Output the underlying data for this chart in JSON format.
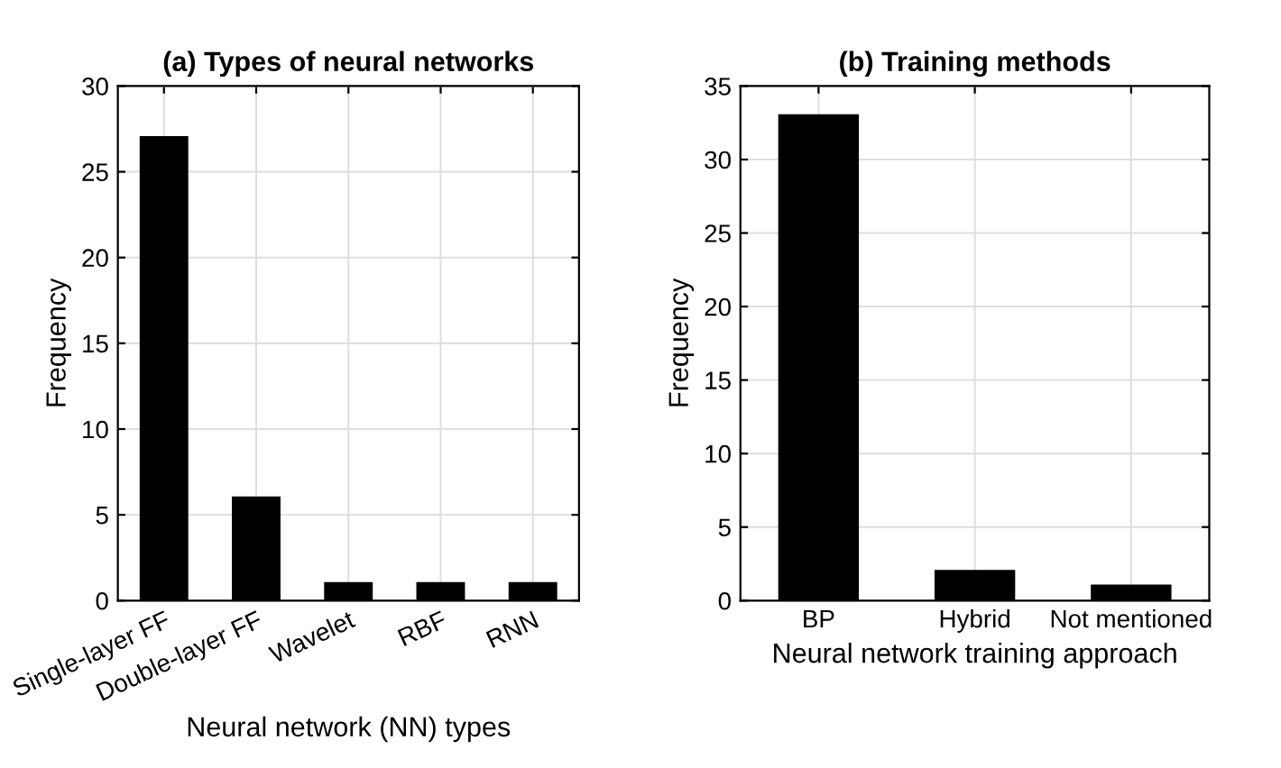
{
  "chart_data": [
    {
      "type": "bar",
      "title": "(a) Types of neural networks",
      "xlabel": "Neural network (NN) types",
      "ylabel": "Frequency",
      "categories": [
        "Single-layer FF",
        "Double-layer FF",
        "Wavelet",
        "RBF",
        "RNN"
      ],
      "values": [
        27,
        6,
        1,
        1,
        1
      ],
      "color": "#000000",
      "ylim": [
        0,
        30
      ],
      "yticks": [
        0,
        5,
        10,
        15,
        20,
        25,
        30
      ],
      "grid": true
    },
    {
      "type": "bar",
      "title": "(b) Training methods",
      "xlabel": "Neural network training approach",
      "ylabel": "Frequency",
      "categories": [
        "BP",
        "Hybrid",
        "Not mentioned"
      ],
      "values": [
        33,
        2,
        1
      ],
      "color": "#000000",
      "ylim": [
        0,
        35
      ],
      "yticks": [
        0,
        5,
        10,
        15,
        20,
        25,
        30,
        35
      ],
      "grid": true
    }
  ]
}
